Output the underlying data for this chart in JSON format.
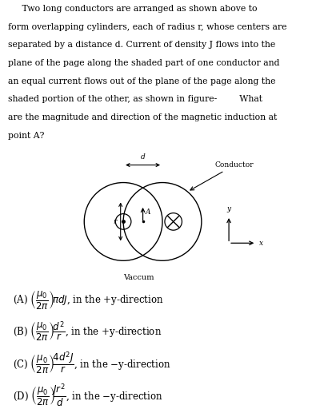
{
  "background_color": "#ffffff",
  "text_color": "#000000",
  "para_lines": [
    "     Two long conductors are arranged as shown above to",
    "form overlapping cylinders, each of radius r, whose centers are",
    "separated by a distance d. Current of density J flows into the",
    "plane of the page along the shaded part of one conductor and",
    "an equal current flows out of the plane of the page along the",
    "shaded portion of the other, as shown in figure-        What",
    "are the magnitude and direction of the magnetic induction at",
    "point A?"
  ],
  "fig_title": "Vaccum",
  "conductor_label": "Conductor",
  "d_label": "d",
  "r_label": "r",
  "A_label": "A",
  "y_label": "y",
  "x_label": "x",
  "opt_A": "(A) $\\left(\\dfrac{\\mu_0}{2\\pi}\\right)\\!\\pi dJ$, in the +y-direction",
  "opt_B": "(B) $\\left(\\dfrac{\\mu_0}{2\\pi}\\right)\\!\\dfrac{d^2}{r}$, in the +y-direction",
  "opt_C": "(C) $\\left(\\dfrac{\\mu_0}{2\\pi}\\right)\\!\\dfrac{4d^2 J}{r}$, in the −y-direction",
  "opt_D": "(D) $\\left(\\dfrac{\\mu_0}{2\\pi}\\right)\\!\\dfrac{Jr^2}{d}$, in the −y-direction"
}
